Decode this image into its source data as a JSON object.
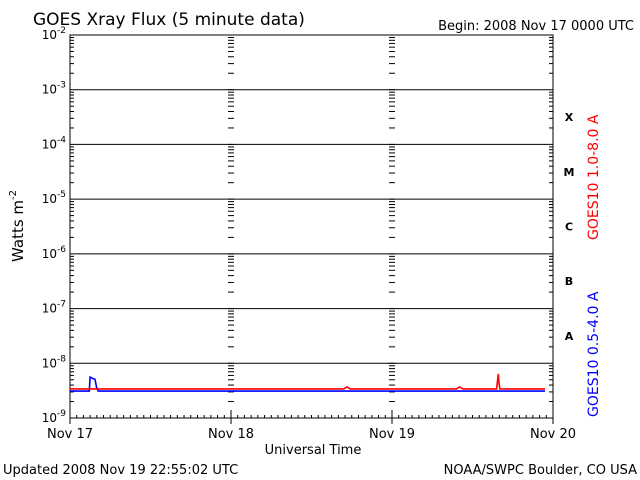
{
  "chart_data": {
    "type": "line",
    "title": "GOES Xray Flux (5 minute data)",
    "begin_label": "Begin:  2008 Nov 17 0000 UTC",
    "xlabel": "Universal Time",
    "ylabel": "Watts m",
    "ylabel_sup": "-2",
    "y_scale": "log",
    "ylim": [
      1e-09,
      0.01
    ],
    "y_tick_exponents": [
      -2,
      -3,
      -4,
      -5,
      -6,
      -7,
      -8,
      -9
    ],
    "y_tick_base": "10",
    "x_unit": "days since 2008 Nov 17 0000 UTC",
    "xlim": [
      0,
      3
    ],
    "x_ticks": [
      {
        "value": 0,
        "label": "Nov 17"
      },
      {
        "value": 1,
        "label": "Nov 18"
      },
      {
        "value": 2,
        "label": "Nov 19"
      },
      {
        "value": 3,
        "label": "Nov 20"
      }
    ],
    "flare_classes": [
      {
        "label": "X",
        "level": 0.0001
      },
      {
        "label": "M",
        "level": 1e-05
      },
      {
        "label": "C",
        "level": 1e-06
      },
      {
        "label": "B",
        "level": 1e-07
      },
      {
        "label": "A",
        "level": 1e-08
      }
    ],
    "grid": true,
    "series": [
      {
        "name": "GOES10 1.0-8.0 A",
        "color": "#ff0000",
        "x": [
          0,
          0.5,
          1.0,
          1.5,
          1.7,
          1.72,
          1.74,
          2.0,
          2.4,
          2.42,
          2.44,
          2.65,
          2.66,
          2.665,
          2.67,
          2.7,
          2.95
        ],
        "y": [
          3.4e-09,
          3.4e-09,
          3.4e-09,
          3.4e-09,
          3.4e-09,
          3.7e-09,
          3.4e-09,
          3.4e-09,
          3.4e-09,
          3.7e-09,
          3.4e-09,
          3.4e-09,
          6.4e-09,
          4.2e-09,
          3.4e-09,
          3.4e-09,
          3.4e-09
        ]
      },
      {
        "name": "GOES10 0.5-4.0 A",
        "color": "#0000ff",
        "x": [
          0,
          0.12,
          0.125,
          0.14,
          0.155,
          0.165,
          0.175,
          0.2,
          0.5,
          1.0,
          1.5,
          2.0,
          2.5,
          2.95
        ],
        "y": [
          3.1e-09,
          3.1e-09,
          5.6e-09,
          5.3e-09,
          5.1e-09,
          3.6e-09,
          3.1e-09,
          3.1e-09,
          3.1e-09,
          3.1e-09,
          3.1e-09,
          3.1e-09,
          3.1e-09,
          3.1e-09
        ]
      }
    ]
  },
  "footer": {
    "updated": "Updated 2008 Nov 19 22:55:02 UTC",
    "source": "NOAA/SWPC Boulder, CO USA"
  },
  "colors": {
    "long_channel": "#ff0000",
    "short_channel": "#0000ff",
    "axis": "#000000"
  }
}
